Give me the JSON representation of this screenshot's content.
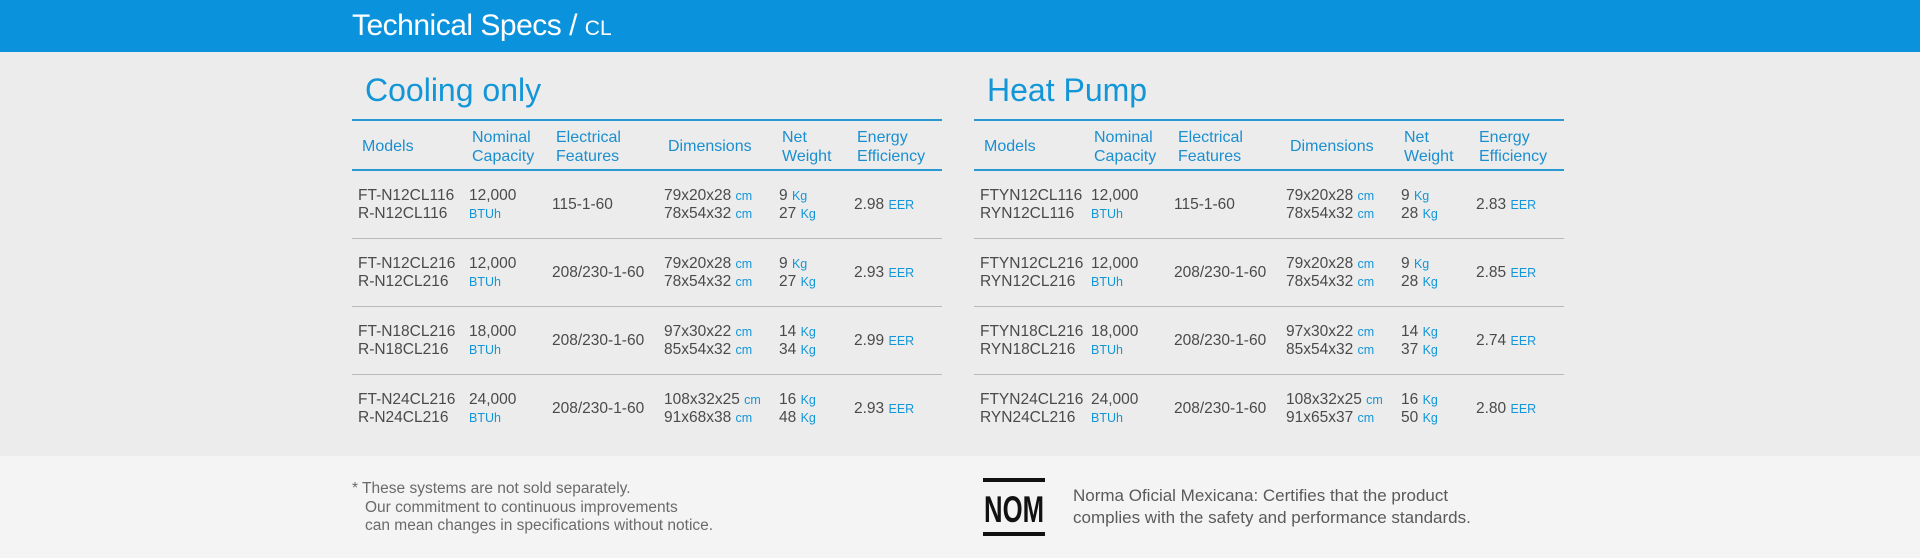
{
  "header": {
    "title": "Technical Specs /",
    "subtitle": "CL"
  },
  "columns": {
    "models": "Models",
    "capacity_1": "Nominal",
    "capacity_2": "Capacity",
    "electrical_1": "Electrical",
    "electrical_2": "Features",
    "dimensions": "Dimensions",
    "weight_1": "Net",
    "weight_2": "Weight",
    "efficiency_1": "Energy",
    "efficiency_2": "Efficiency"
  },
  "units": {
    "btuh": "BTUh",
    "cm": "cm",
    "kg": "Kg",
    "eer": "EER"
  },
  "cooling": {
    "title": "Cooling only",
    "rows": [
      {
        "model_in": "FT-N12CL116",
        "model_out": "R-N12CL116",
        "capacity": "12,000",
        "electrical": "115-1-60",
        "dim_in": "79x20x28",
        "dim_out": "78x54x32",
        "wt_in": "9",
        "wt_out": "27",
        "eer": "2.98"
      },
      {
        "model_in": "FT-N12CL216",
        "model_out": "R-N12CL216",
        "capacity": "12,000",
        "electrical": "208/230-1-60",
        "dim_in": "79x20x28",
        "dim_out": "78x54x32",
        "wt_in": "9",
        "wt_out": "27",
        "eer": "2.93"
      },
      {
        "model_in": "FT-N18CL216",
        "model_out": "R-N18CL216",
        "capacity": "18,000",
        "electrical": "208/230-1-60",
        "dim_in": "97x30x22",
        "dim_out": "85x54x32",
        "wt_in": "14",
        "wt_out": "34",
        "eer": "2.99"
      },
      {
        "model_in": "FT-N24CL216",
        "model_out": "R-N24CL216",
        "capacity": "24,000",
        "electrical": "208/230-1-60",
        "dim_in": "108x32x25",
        "dim_out": "91x68x38",
        "wt_in": "16",
        "wt_out": "48",
        "eer": "2.93"
      }
    ]
  },
  "heatpump": {
    "title": "Heat Pump",
    "rows": [
      {
        "model_in": "FTYN12CL116",
        "model_out": "RYN12CL116",
        "capacity": "12,000",
        "electrical": "115-1-60",
        "dim_in": "79x20x28",
        "dim_out": "78x54x32",
        "wt_in": "9",
        "wt_out": "28",
        "eer": "2.83"
      },
      {
        "model_in": "FTYN12CL216",
        "model_out": "RYN12CL216",
        "capacity": "12,000",
        "electrical": "208/230-1-60",
        "dim_in": "79x20x28",
        "dim_out": "78x54x32",
        "wt_in": "9",
        "wt_out": "28",
        "eer": "2.85"
      },
      {
        "model_in": "FTYN18CL216",
        "model_out": "RYN18CL216",
        "capacity": "18,000",
        "electrical": "208/230-1-60",
        "dim_in": "97x30x22",
        "dim_out": "85x54x32",
        "wt_in": "14",
        "wt_out": "37",
        "eer": "2.74"
      },
      {
        "model_in": "FTYN24CL216",
        "model_out": "RYN24CL216",
        "capacity": "24,000",
        "electrical": "208/230-1-60",
        "dim_in": "108x32x25",
        "dim_out": "91x65x37",
        "wt_in": "16",
        "wt_out": "50",
        "eer": "2.80"
      }
    ]
  },
  "footer": {
    "note_1": "* These systems are not sold separately.",
    "note_2": "Our commitment to continuous improvements",
    "note_3": "can mean changes in specifications without notice.",
    "nom_logo_text": "NOM",
    "nom_1": "Norma Oficial Mexicana: Certifies that the product",
    "nom_2": "complies with the safety and performance standards."
  },
  "colors": {
    "brand_blue": "#0b92dc",
    "accent_text": "#1296d8",
    "divider": "#b9b9b9"
  }
}
